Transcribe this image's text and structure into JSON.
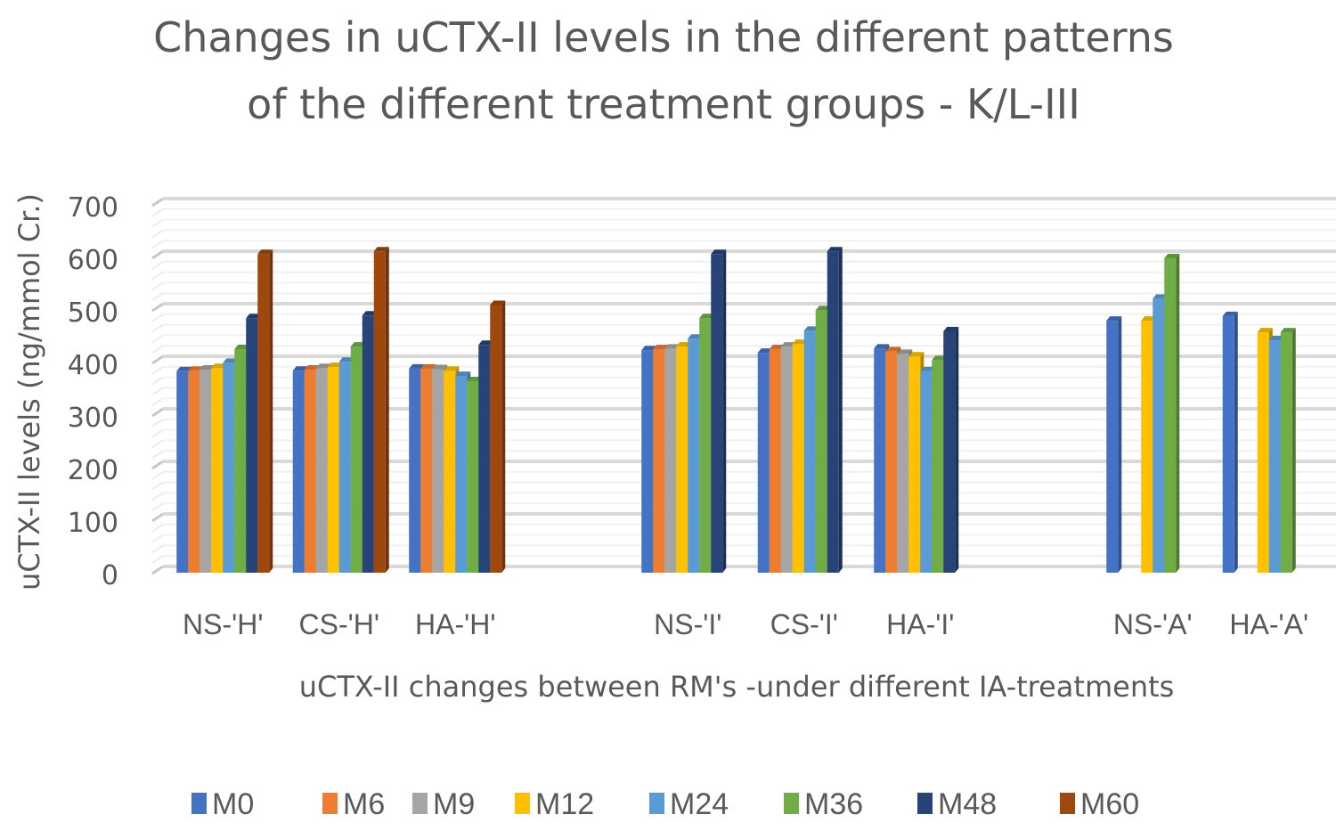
{
  "chart_data": {
    "type": "bar",
    "style": "3d-clustered-column",
    "title": [
      "Changes in uCTX-II levels in the different patterns",
      "of the different treatment groups - K/L-III"
    ],
    "xlabel": "uCTX-II changes between RM's -under different IA-treatments",
    "ylabel": "uCTX-II levels (ng/mmol Cr.)",
    "ylim": [
      0,
      700
    ],
    "yticks": [
      "0",
      "100",
      "200",
      "300",
      "400",
      "500",
      "600",
      "700"
    ],
    "grid": true,
    "legend_position": "bottom",
    "categories": [
      "NS-'H'",
      "CS-'H'",
      "HA-'H'",
      "",
      "NS-'I'",
      "CS-'I'",
      "HA-'I'",
      "",
      "NS-'A'",
      "HA-'A'"
    ],
    "series": [
      {
        "name": "M0",
        "color": "#4472C4",
        "values": [
          380,
          381,
          385,
          null,
          420,
          415,
          423,
          null,
          476,
          485
        ]
      },
      {
        "name": "M6",
        "color": "#ED7D31",
        "values": [
          381,
          383,
          385,
          null,
          422,
          422,
          418,
          null,
          null,
          null
        ]
      },
      {
        "name": "M9",
        "color": "#A5A5A5",
        "values": [
          383,
          386,
          384,
          null,
          423,
          427,
          413,
          null,
          null,
          null
        ]
      },
      {
        "name": "M12",
        "color": "#FFC000",
        "values": [
          386,
          388,
          381,
          null,
          427,
          432,
          408,
          null,
          476,
          454
        ]
      },
      {
        "name": "M24",
        "color": "#5B9BD5",
        "values": [
          396,
          398,
          371,
          null,
          442,
          457,
          380,
          null,
          518,
          439
        ]
      },
      {
        "name": "M36",
        "color": "#70AD47",
        "values": [
          422,
          427,
          361,
          null,
          481,
          496,
          401,
          null,
          595,
          454
        ]
      },
      {
        "name": "M48",
        "color": "#264478",
        "values": [
          481,
          486,
          430,
          null,
          603,
          608,
          456,
          null,
          null,
          null
        ]
      },
      {
        "name": "M60",
        "color": "#9E480E",
        "values": [
          603,
          608,
          506,
          null,
          null,
          null,
          null,
          null,
          null,
          null
        ]
      }
    ]
  }
}
